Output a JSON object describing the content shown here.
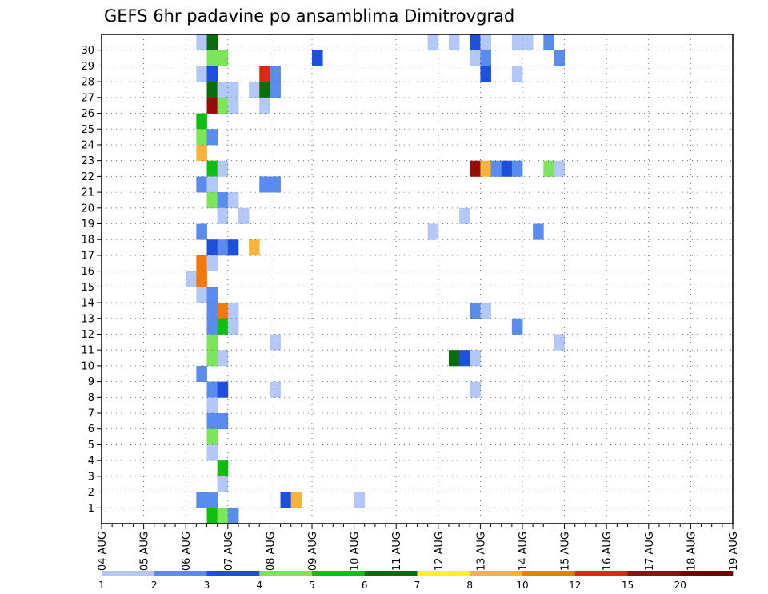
{
  "chart_data": {
    "type": "heatmap",
    "title": "GEFS 6hr padavine po ansamblima Dimitrovgrad",
    "xlabel": "",
    "ylabel": "",
    "x_tick_labels": [
      "04 AUG",
      "05 AUG",
      "06 AUG",
      "07 AUG",
      "08 AUG",
      "09 AUG",
      "10 AUG",
      "11 AUG",
      "12 AUG",
      "13 AUG",
      "14 AUG",
      "15 AUG",
      "16 AUG",
      "17 AUG",
      "18 AUG",
      "19 AUG"
    ],
    "x_step_hours": 6,
    "y_tick_labels": [
      "1",
      "2",
      "3",
      "4",
      "5",
      "6",
      "7",
      "8",
      "9",
      "10",
      "11",
      "12",
      "13",
      "14",
      "15",
      "16",
      "17",
      "18",
      "19",
      "20",
      "21",
      "22",
      "23",
      "24",
      "25",
      "26",
      "27",
      "28",
      "29",
      "30"
    ],
    "ylim": [
      0,
      30
    ],
    "grid": true,
    "colorbar": {
      "labels": [
        "1",
        "2",
        "3",
        "4",
        "5",
        "6",
        "7",
        "8",
        "10",
        "12",
        "15",
        "20"
      ],
      "colors": [
        "#b4c8f8",
        "#5a8cee",
        "#1e50dc",
        "#7ce65a",
        "#0fbf0f",
        "#0a6e0a",
        "#fff21e",
        "#fab43c",
        "#f5780a",
        "#dc2814",
        "#9b0a0a",
        "#6e0505"
      ]
    },
    "cells": [
      [
        30,
        9,
        0
      ],
      [
        30,
        10,
        5
      ],
      [
        30,
        31,
        0
      ],
      [
        30,
        33,
        0
      ],
      [
        30,
        35,
        2
      ],
      [
        30,
        36,
        0
      ],
      [
        30,
        39,
        0
      ],
      [
        30,
        40,
        0
      ],
      [
        30,
        42,
        1
      ],
      [
        29,
        10,
        3
      ],
      [
        29,
        11,
        3
      ],
      [
        29,
        20,
        2
      ],
      [
        29,
        35,
        0
      ],
      [
        29,
        36,
        1
      ],
      [
        29,
        43,
        1
      ],
      [
        28,
        9,
        0
      ],
      [
        28,
        10,
        2
      ],
      [
        28,
        15,
        9
      ],
      [
        28,
        16,
        1
      ],
      [
        28,
        36,
        2
      ],
      [
        28,
        39,
        0
      ],
      [
        27,
        10,
        5
      ],
      [
        27,
        11,
        0
      ],
      [
        27,
        12,
        0
      ],
      [
        27,
        14,
        0
      ],
      [
        27,
        15,
        5
      ],
      [
        27,
        16,
        1
      ],
      [
        26,
        10,
        10
      ],
      [
        26,
        11,
        3
      ],
      [
        26,
        12,
        0
      ],
      [
        26,
        15,
        0
      ],
      [
        25,
        9,
        4
      ],
      [
        24,
        9,
        3
      ],
      [
        24,
        10,
        1
      ],
      [
        23,
        9,
        7
      ],
      [
        22,
        10,
        4
      ],
      [
        22,
        11,
        0
      ],
      [
        22,
        35,
        10
      ],
      [
        22,
        36,
        7
      ],
      [
        22,
        37,
        1
      ],
      [
        22,
        38,
        2
      ],
      [
        22,
        39,
        1
      ],
      [
        22,
        42,
        3
      ],
      [
        22,
        43,
        0
      ],
      [
        21,
        9,
        1
      ],
      [
        21,
        10,
        0
      ],
      [
        21,
        15,
        1
      ],
      [
        21,
        16,
        1
      ],
      [
        20,
        10,
        3
      ],
      [
        20,
        11,
        1
      ],
      [
        20,
        12,
        0
      ],
      [
        19,
        11,
        0
      ],
      [
        19,
        13,
        0
      ],
      [
        19,
        34,
        0
      ],
      [
        18,
        9,
        1
      ],
      [
        18,
        31,
        0
      ],
      [
        18,
        41,
        1
      ],
      [
        17,
        10,
        2
      ],
      [
        17,
        11,
        1
      ],
      [
        17,
        12,
        2
      ],
      [
        17,
        14,
        7
      ],
      [
        16,
        9,
        8
      ],
      [
        16,
        10,
        0
      ],
      [
        15,
        8,
        0
      ],
      [
        15,
        9,
        8
      ],
      [
        14,
        9,
        0
      ],
      [
        14,
        10,
        1
      ],
      [
        13,
        10,
        1
      ],
      [
        13,
        11,
        8
      ],
      [
        13,
        12,
        0
      ],
      [
        13,
        35,
        1
      ],
      [
        13,
        36,
        0
      ],
      [
        12,
        10,
        1
      ],
      [
        12,
        11,
        4
      ],
      [
        12,
        12,
        0
      ],
      [
        12,
        39,
        1
      ],
      [
        11,
        10,
        3
      ],
      [
        11,
        16,
        0
      ],
      [
        11,
        43,
        0
      ],
      [
        10,
        10,
        3
      ],
      [
        10,
        11,
        0
      ],
      [
        10,
        33,
        5
      ],
      [
        10,
        34,
        2
      ],
      [
        10,
        35,
        0
      ],
      [
        9,
        9,
        1
      ],
      [
        8,
        10,
        1
      ],
      [
        8,
        11,
        2
      ],
      [
        8,
        16,
        0
      ],
      [
        8,
        35,
        0
      ],
      [
        7,
        10,
        0
      ],
      [
        6,
        10,
        1
      ],
      [
        6,
        11,
        1
      ],
      [
        5,
        10,
        3
      ],
      [
        4,
        10,
        0
      ],
      [
        3,
        11,
        4
      ],
      [
        2,
        11,
        0
      ],
      [
        1,
        9,
        1
      ],
      [
        1,
        10,
        1
      ],
      [
        1,
        17,
        2
      ],
      [
        1,
        18,
        7
      ],
      [
        1,
        24,
        0
      ],
      [
        0,
        10,
        4
      ],
      [
        0,
        11,
        3
      ],
      [
        0,
        12,
        1
      ]
    ]
  }
}
